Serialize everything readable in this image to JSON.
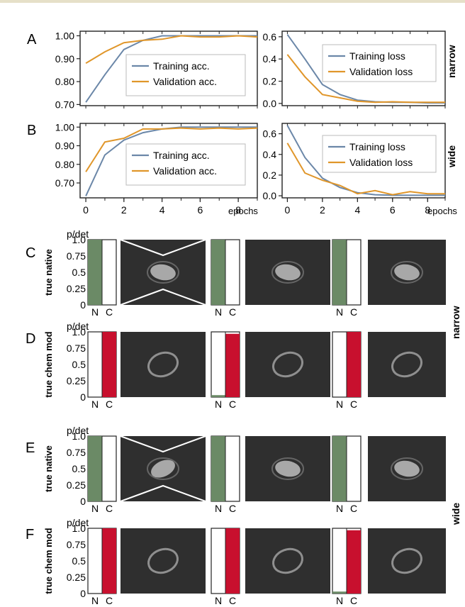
{
  "panel_letters": {
    "A": "A",
    "B": "B",
    "C": "C",
    "D": "D",
    "E": "E",
    "F": "F"
  },
  "row_labels": {
    "narrow": "narrow",
    "wide": "wide"
  },
  "colors": {
    "training": "#6b87a8",
    "validation": "#e0962a",
    "native_bar": "#6b8a66",
    "chem_bar": "#c8102e",
    "micrograph": "#2f2f2f",
    "top_rule": "#e6e0c8"
  },
  "x_unit_label": "epochs",
  "bar_axis": {
    "title": "p/det",
    "categories": [
      "N",
      "C"
    ],
    "ticks": [
      "1.0",
      "0.75",
      "0.5",
      "0.25",
      "0"
    ]
  },
  "chart_data": [
    {
      "id": "A-acc",
      "type": "line",
      "panel": "A",
      "xlim": [
        -0.3,
        9
      ],
      "xticks": [
        0,
        2,
        4,
        6,
        8
      ],
      "ylim": [
        0.695,
        1.02
      ],
      "yticks": [
        0.7,
        0.8,
        0.9,
        1.0
      ],
      "ytick_labels": [
        "0.70",
        "0.80",
        "0.90",
        "1.00"
      ],
      "legend": "center-right",
      "series": [
        {
          "name": "Training acc.",
          "color": "#6b87a8",
          "x": [
            0,
            1,
            2,
            3,
            4,
            5,
            6,
            7,
            8,
            9
          ],
          "y": [
            0.71,
            0.83,
            0.94,
            0.98,
            1.0,
            1.0,
            1.0,
            1.0,
            1.0,
            1.0
          ]
        },
        {
          "name": "Validation acc.",
          "color": "#e0962a",
          "x": [
            0,
            1,
            2,
            3,
            4,
            5,
            6,
            7,
            8,
            9
          ],
          "y": [
            0.88,
            0.93,
            0.97,
            0.98,
            0.985,
            1.0,
            0.995,
            0.995,
            1.0,
            0.995
          ]
        }
      ]
    },
    {
      "id": "A-loss",
      "type": "line",
      "panel": "A",
      "xlim": [
        -0.3,
        9
      ],
      "xticks": [
        0,
        2,
        4,
        6,
        8
      ],
      "ylim": [
        -0.02,
        0.65
      ],
      "yticks": [
        0,
        0.2,
        0.4,
        0.6
      ],
      "ytick_labels": [
        "0.0",
        "0.2",
        "0.4",
        "0.6"
      ],
      "legend": "top-right",
      "series": [
        {
          "name": "Training loss",
          "color": "#6b87a8",
          "x": [
            0,
            1,
            2,
            3,
            4,
            5,
            6,
            7,
            8,
            9
          ],
          "y": [
            0.62,
            0.4,
            0.17,
            0.08,
            0.03,
            0.015,
            0.01,
            0.01,
            0.005,
            0.005
          ]
        },
        {
          "name": "Validation loss",
          "color": "#e0962a",
          "x": [
            0,
            1,
            2,
            3,
            4,
            5,
            6,
            7,
            8,
            9
          ],
          "y": [
            0.44,
            0.24,
            0.08,
            0.05,
            0.02,
            0.01,
            0.015,
            0.01,
            0.01,
            0.01
          ]
        }
      ]
    },
    {
      "id": "B-acc",
      "type": "line",
      "panel": "B",
      "xlim": [
        -0.3,
        9
      ],
      "xticks": [
        0,
        2,
        4,
        6,
        8
      ],
      "ylim": [
        0.62,
        1.02
      ],
      "yticks": [
        0.7,
        0.8,
        0.9,
        1.0
      ],
      "ytick_labels": [
        "0.70",
        "0.80",
        "0.90",
        "1.00"
      ],
      "legend": "center-right",
      "series": [
        {
          "name": "Training acc.",
          "color": "#6b87a8",
          "x": [
            0,
            1,
            2,
            3,
            4,
            5,
            6,
            7,
            8,
            9
          ],
          "y": [
            0.63,
            0.85,
            0.93,
            0.97,
            0.99,
            1.0,
            1.0,
            1.0,
            1.0,
            1.0
          ]
        },
        {
          "name": "Validation acc.",
          "color": "#e0962a",
          "x": [
            0,
            1,
            2,
            3,
            4,
            5,
            6,
            7,
            8,
            9
          ],
          "y": [
            0.76,
            0.92,
            0.94,
            0.99,
            0.99,
            0.995,
            0.99,
            0.995,
            0.99,
            0.995
          ]
        }
      ]
    },
    {
      "id": "B-loss",
      "type": "line",
      "panel": "B",
      "xlim": [
        -0.3,
        9
      ],
      "xticks": [
        0,
        2,
        4,
        6,
        8
      ],
      "ylim": [
        -0.02,
        0.7
      ],
      "yticks": [
        0,
        0.2,
        0.4,
        0.6
      ],
      "ytick_labels": [
        "0.0",
        "0.2",
        "0.4",
        "0.6"
      ],
      "legend": "top-right",
      "series": [
        {
          "name": "Training loss",
          "color": "#6b87a8",
          "x": [
            0,
            1,
            2,
            3,
            4,
            5,
            6,
            7,
            8,
            9
          ],
          "y": [
            0.68,
            0.37,
            0.17,
            0.08,
            0.03,
            0.01,
            0.005,
            0.005,
            0.005,
            0.005
          ]
        },
        {
          "name": "Validation loss",
          "color": "#e0962a",
          "x": [
            0,
            1,
            2,
            3,
            4,
            5,
            6,
            7,
            8,
            9
          ],
          "y": [
            0.51,
            0.22,
            0.15,
            0.1,
            0.02,
            0.05,
            0.01,
            0.04,
            0.02,
            0.02
          ]
        }
      ]
    }
  ],
  "bar_rows": [
    {
      "panel": "C",
      "side_label": "true native",
      "categories": [
        "N",
        "C"
      ],
      "values_per_example": [
        [
          1.0,
          0.0
        ],
        [
          1.0,
          0.0
        ],
        [
          1.0,
          0.0
        ]
      ]
    },
    {
      "panel": "D",
      "side_label": "true chem mod",
      "categories": [
        "N",
        "C"
      ],
      "values_per_example": [
        [
          0.0,
          1.0
        ],
        [
          0.03,
          0.97
        ],
        [
          0.0,
          1.0
        ]
      ]
    },
    {
      "panel": "E",
      "side_label": "true native",
      "categories": [
        "N",
        "C"
      ],
      "values_per_example": [
        [
          1.0,
          0.0
        ],
        [
          1.0,
          0.0
        ],
        [
          1.0,
          0.0
        ]
      ]
    },
    {
      "panel": "F",
      "side_label": "true chem mod",
      "categories": [
        "N",
        "C"
      ],
      "values_per_example": [
        [
          0.0,
          1.0
        ],
        [
          0.0,
          1.0
        ],
        [
          0.03,
          0.97
        ]
      ]
    }
  ]
}
